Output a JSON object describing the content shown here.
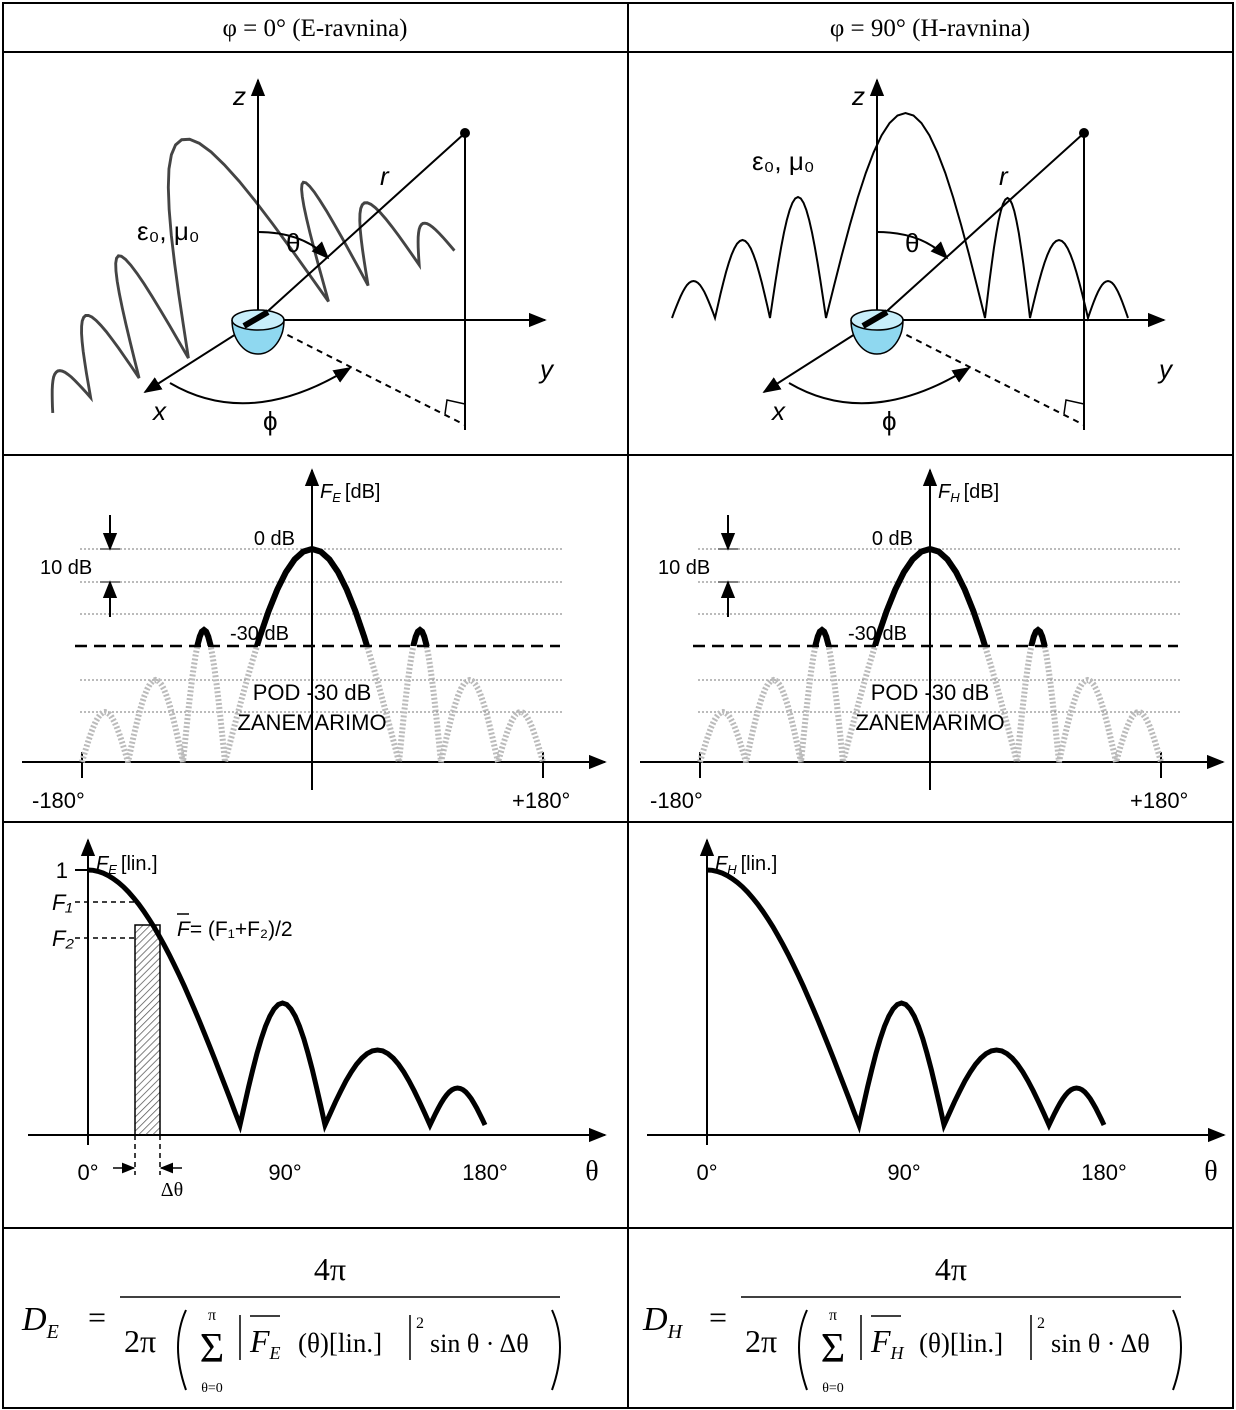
{
  "header": [
    "φ = 0° (E-ravnina)",
    "φ = 90° (H-ravnina)"
  ],
  "geometry": [
    {
      "z": "z",
      "y": "y",
      "x": "x",
      "r": "r",
      "theta": "θ",
      "phi": "ϕ",
      "medium": "ε₀, μ₀"
    },
    {
      "z": "z",
      "y": "y",
      "x": "x",
      "r": "r",
      "theta": "θ",
      "phi": "ϕ",
      "medium": "ε₀, μ₀"
    }
  ],
  "db_plots": [
    {
      "axis_symbol": "F",
      "axis_sub": "E",
      "axis_unit": "[dB]",
      "zero_label": "0 dB",
      "step_label": "10 dB",
      "threshold_label": "-30 dB",
      "note": [
        "POD -30 dB",
        "ZANEMARIMO"
      ],
      "x_min": "-180°",
      "x_max": "+180°"
    },
    {
      "axis_symbol": "F",
      "axis_sub": "H",
      "axis_unit": "[dB]",
      "zero_label": "0 dB",
      "step_label": "10 dB",
      "threshold_label": "-30 dB",
      "note": [
        "POD -30 dB",
        "ZANEMARIMO"
      ],
      "x_min": "-180°",
      "x_max": "+180°"
    }
  ],
  "lin_plots": [
    {
      "axis_symbol": "F",
      "axis_sub": "E",
      "axis_unit": "[lin.]",
      "x_ticks": [
        "0°",
        "90°",
        "180°"
      ],
      "x_label": "θ",
      "one_label": "1",
      "f1_label": "F₁",
      "f2_label": "F₂",
      "mean_symbol": "F",
      "mean_formula": "= (F₁+F₂)/2",
      "delta_label": "Δθ"
    },
    {
      "axis_symbol": "F",
      "axis_sub": "H",
      "axis_unit": "[lin.]",
      "x_ticks": [
        "0°",
        "90°",
        "180°"
      ],
      "x_label": "θ"
    }
  ],
  "formulas": [
    {
      "lhs": "D",
      "lhs_sub": "E",
      "equals": "=",
      "numerator": "4π",
      "den_prefix": "2π",
      "sum": "Σ",
      "sum_lower": "θ=0",
      "sum_upper": "π",
      "F": "F",
      "F_sub": "E",
      "args": "(θ)[lin.]",
      "power": "2",
      "tail": "sin θ · Δθ"
    },
    {
      "lhs": "D",
      "lhs_sub": "H",
      "equals": "=",
      "numerator": "4π",
      "den_prefix": "2π",
      "sum": "Σ",
      "sum_lower": "θ=0",
      "sum_upper": "π",
      "F": "F",
      "F_sub": "H",
      "args": "(θ)[lin.]",
      "power": "2",
      "tail": "sin θ · Δθ"
    }
  ]
}
